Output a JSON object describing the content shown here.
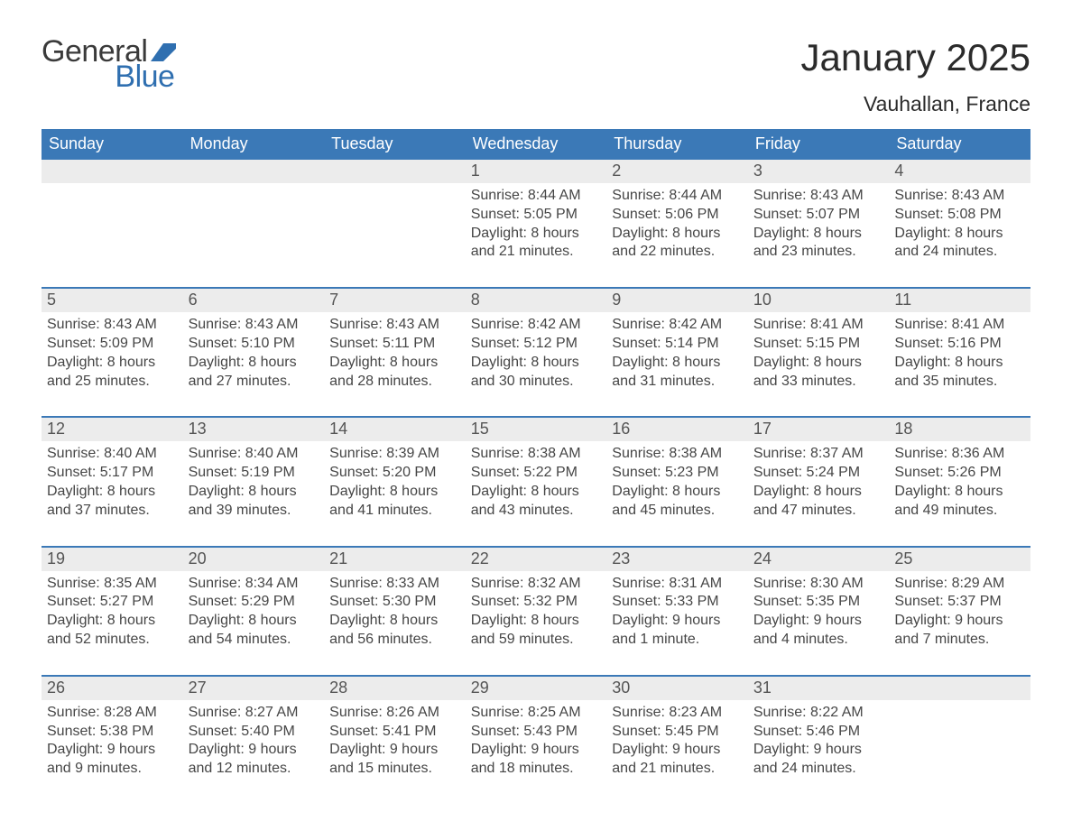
{
  "brand": {
    "word1": "General",
    "word2": "Blue",
    "flag_color": "#2f6fb0"
  },
  "title": "January 2025",
  "location": "Vauhallan, France",
  "colors": {
    "header_bg": "#3b79b7",
    "header_text": "#ffffff",
    "daynum_bg": "#ececec",
    "rule": "#3b79b7",
    "body_text": "#464646",
    "page_bg": "#ffffff"
  },
  "typography": {
    "title_fontsize_pt": 32,
    "location_fontsize_pt": 17,
    "weekday_fontsize_pt": 14,
    "daynum_fontsize_pt": 14,
    "body_fontsize_pt": 12,
    "font_family": "Arial"
  },
  "layout": {
    "columns": 7,
    "weeks": 5,
    "first_day_column_index": 3
  },
  "weekdays": [
    "Sunday",
    "Monday",
    "Tuesday",
    "Wednesday",
    "Thursday",
    "Friday",
    "Saturday"
  ],
  "labels": {
    "sunrise": "Sunrise",
    "sunset": "Sunset",
    "daylight": "Daylight"
  },
  "days": [
    {
      "n": 1,
      "col": 3,
      "sunrise": "8:44 AM",
      "sunset": "5:05 PM",
      "daylight": "8 hours and 21 minutes."
    },
    {
      "n": 2,
      "col": 4,
      "sunrise": "8:44 AM",
      "sunset": "5:06 PM",
      "daylight": "8 hours and 22 minutes."
    },
    {
      "n": 3,
      "col": 5,
      "sunrise": "8:43 AM",
      "sunset": "5:07 PM",
      "daylight": "8 hours and 23 minutes."
    },
    {
      "n": 4,
      "col": 6,
      "sunrise": "8:43 AM",
      "sunset": "5:08 PM",
      "daylight": "8 hours and 24 minutes."
    },
    {
      "n": 5,
      "col": 0,
      "sunrise": "8:43 AM",
      "sunset": "5:09 PM",
      "daylight": "8 hours and 25 minutes."
    },
    {
      "n": 6,
      "col": 1,
      "sunrise": "8:43 AM",
      "sunset": "5:10 PM",
      "daylight": "8 hours and 27 minutes."
    },
    {
      "n": 7,
      "col": 2,
      "sunrise": "8:43 AM",
      "sunset": "5:11 PM",
      "daylight": "8 hours and 28 minutes."
    },
    {
      "n": 8,
      "col": 3,
      "sunrise": "8:42 AM",
      "sunset": "5:12 PM",
      "daylight": "8 hours and 30 minutes."
    },
    {
      "n": 9,
      "col": 4,
      "sunrise": "8:42 AM",
      "sunset": "5:14 PM",
      "daylight": "8 hours and 31 minutes."
    },
    {
      "n": 10,
      "col": 5,
      "sunrise": "8:41 AM",
      "sunset": "5:15 PM",
      "daylight": "8 hours and 33 minutes."
    },
    {
      "n": 11,
      "col": 6,
      "sunrise": "8:41 AM",
      "sunset": "5:16 PM",
      "daylight": "8 hours and 35 minutes."
    },
    {
      "n": 12,
      "col": 0,
      "sunrise": "8:40 AM",
      "sunset": "5:17 PM",
      "daylight": "8 hours and 37 minutes."
    },
    {
      "n": 13,
      "col": 1,
      "sunrise": "8:40 AM",
      "sunset": "5:19 PM",
      "daylight": "8 hours and 39 minutes."
    },
    {
      "n": 14,
      "col": 2,
      "sunrise": "8:39 AM",
      "sunset": "5:20 PM",
      "daylight": "8 hours and 41 minutes."
    },
    {
      "n": 15,
      "col": 3,
      "sunrise": "8:38 AM",
      "sunset": "5:22 PM",
      "daylight": "8 hours and 43 minutes."
    },
    {
      "n": 16,
      "col": 4,
      "sunrise": "8:38 AM",
      "sunset": "5:23 PM",
      "daylight": "8 hours and 45 minutes."
    },
    {
      "n": 17,
      "col": 5,
      "sunrise": "8:37 AM",
      "sunset": "5:24 PM",
      "daylight": "8 hours and 47 minutes."
    },
    {
      "n": 18,
      "col": 6,
      "sunrise": "8:36 AM",
      "sunset": "5:26 PM",
      "daylight": "8 hours and 49 minutes."
    },
    {
      "n": 19,
      "col": 0,
      "sunrise": "8:35 AM",
      "sunset": "5:27 PM",
      "daylight": "8 hours and 52 minutes."
    },
    {
      "n": 20,
      "col": 1,
      "sunrise": "8:34 AM",
      "sunset": "5:29 PM",
      "daylight": "8 hours and 54 minutes."
    },
    {
      "n": 21,
      "col": 2,
      "sunrise": "8:33 AM",
      "sunset": "5:30 PM",
      "daylight": "8 hours and 56 minutes."
    },
    {
      "n": 22,
      "col": 3,
      "sunrise": "8:32 AM",
      "sunset": "5:32 PM",
      "daylight": "8 hours and 59 minutes."
    },
    {
      "n": 23,
      "col": 4,
      "sunrise": "8:31 AM",
      "sunset": "5:33 PM",
      "daylight": "9 hours and 1 minute."
    },
    {
      "n": 24,
      "col": 5,
      "sunrise": "8:30 AM",
      "sunset": "5:35 PM",
      "daylight": "9 hours and 4 minutes."
    },
    {
      "n": 25,
      "col": 6,
      "sunrise": "8:29 AM",
      "sunset": "5:37 PM",
      "daylight": "9 hours and 7 minutes."
    },
    {
      "n": 26,
      "col": 0,
      "sunrise": "8:28 AM",
      "sunset": "5:38 PM",
      "daylight": "9 hours and 9 minutes."
    },
    {
      "n": 27,
      "col": 1,
      "sunrise": "8:27 AM",
      "sunset": "5:40 PM",
      "daylight": "9 hours and 12 minutes."
    },
    {
      "n": 28,
      "col": 2,
      "sunrise": "8:26 AM",
      "sunset": "5:41 PM",
      "daylight": "9 hours and 15 minutes."
    },
    {
      "n": 29,
      "col": 3,
      "sunrise": "8:25 AM",
      "sunset": "5:43 PM",
      "daylight": "9 hours and 18 minutes."
    },
    {
      "n": 30,
      "col": 4,
      "sunrise": "8:23 AM",
      "sunset": "5:45 PM",
      "daylight": "9 hours and 21 minutes."
    },
    {
      "n": 31,
      "col": 5,
      "sunrise": "8:22 AM",
      "sunset": "5:46 PM",
      "daylight": "9 hours and 24 minutes."
    }
  ]
}
